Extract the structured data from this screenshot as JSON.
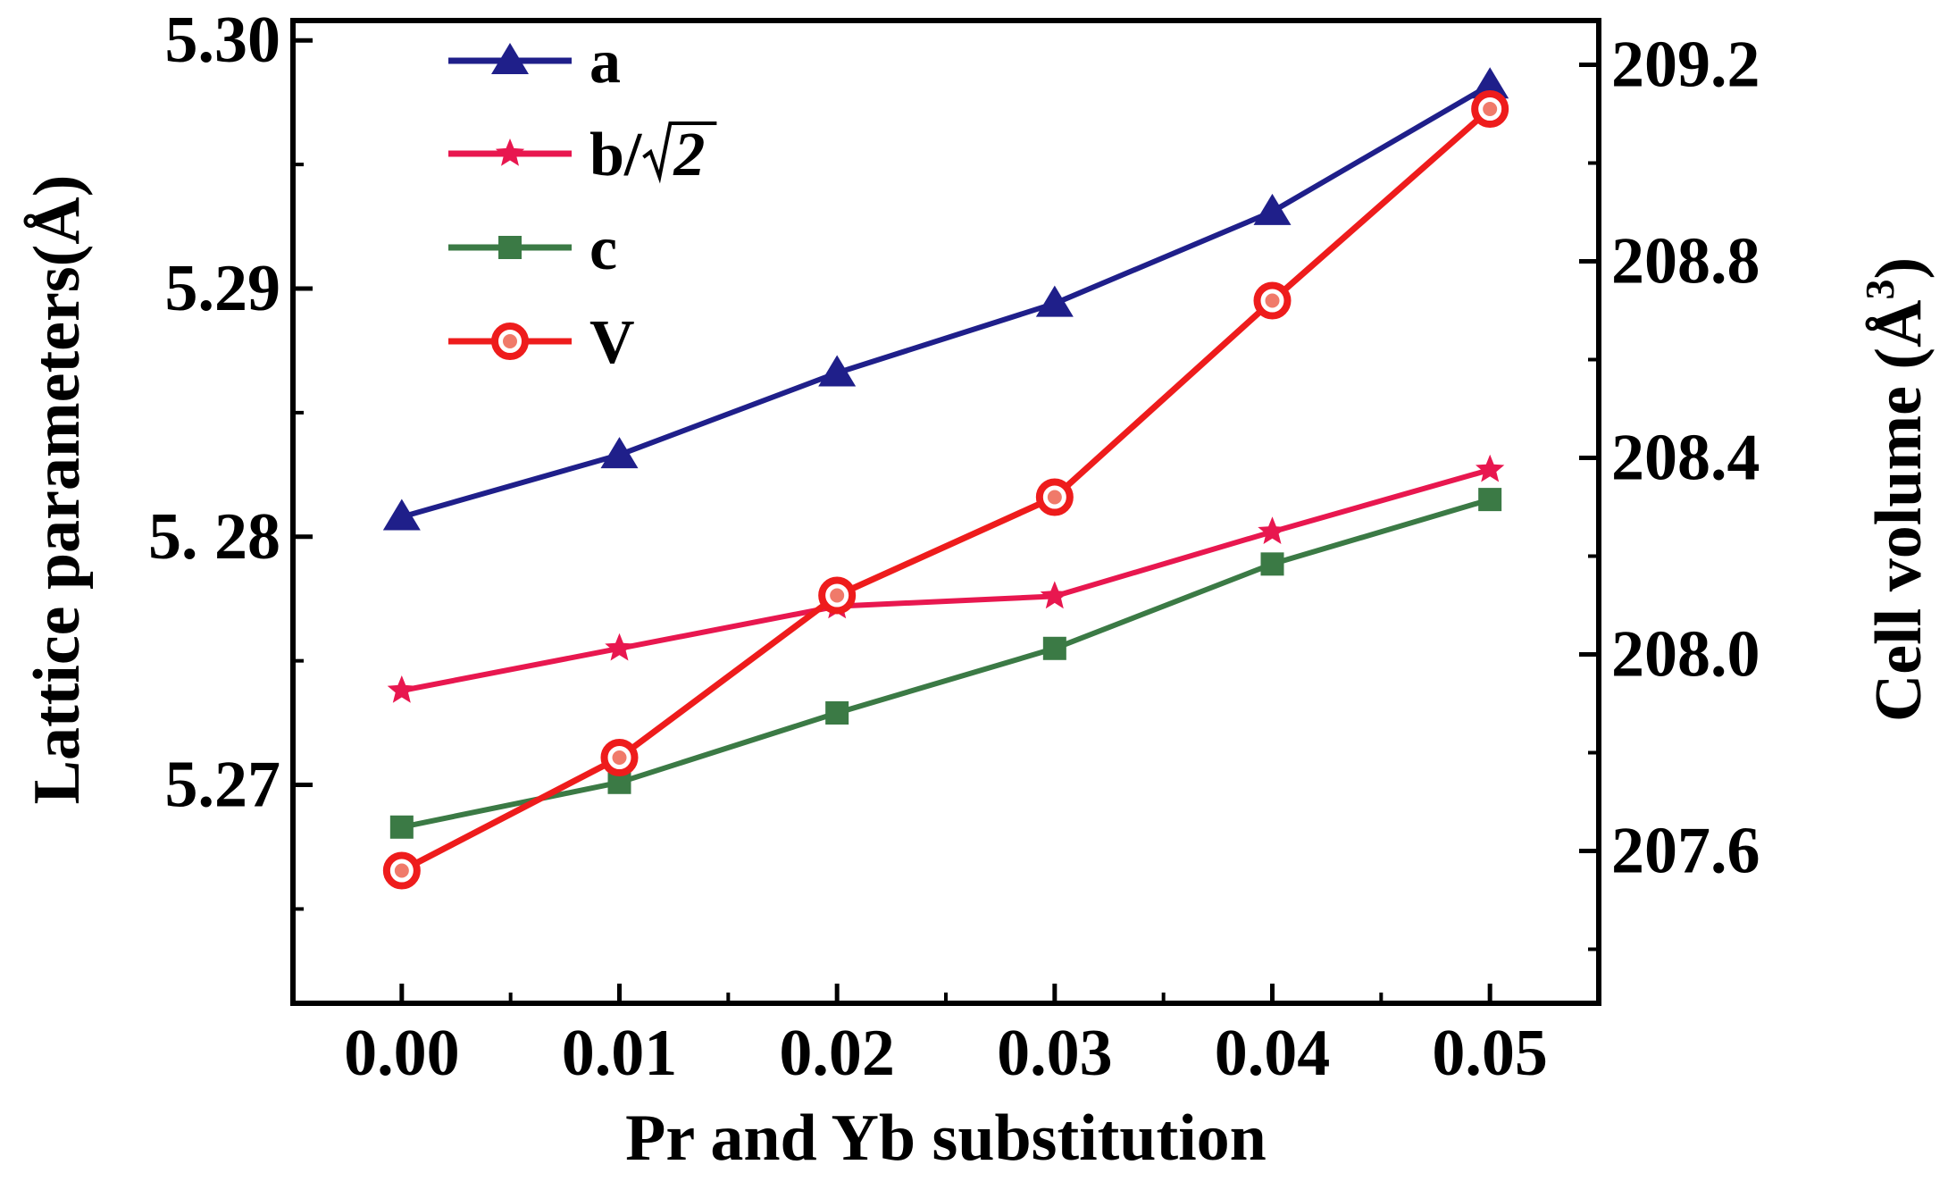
{
  "chart_data": {
    "type": "line",
    "title": "",
    "xlabel": "Pr and Yb substitution",
    "ylabel_left": {
      "text": "Lattice parameters(",
      "unit": "Å",
      "close": ")"
    },
    "ylabel_right": {
      "text": "Cell volume (",
      "unit": "Å",
      "sup": "3",
      "close": ")"
    },
    "x": [
      0.0,
      0.01,
      0.02,
      0.03,
      0.04,
      0.05
    ],
    "x_tick_labels": [
      "0.00",
      "0.01",
      "0.02",
      "0.03",
      "0.04",
      "0.05"
    ],
    "xlim": [
      -0.005,
      0.055
    ],
    "ylim_left": [
      5.2612,
      5.3008
    ],
    "y_ticks_left": [
      5.27,
      5.28,
      5.29,
      5.3
    ],
    "y_tick_labels_left": [
      "5.27",
      "5. 28",
      "5.29",
      "5.30"
    ],
    "ylim_right": [
      207.29,
      209.29
    ],
    "y_ticks_right": [
      207.6,
      208.0,
      208.4,
      208.8,
      209.2
    ],
    "y_tick_labels_right": [
      "207.6",
      "208.0",
      "208.4",
      "208.8",
      "209.2"
    ],
    "grid": false,
    "legend_position": "top-left",
    "series": [
      {
        "name": "a",
        "label_main": "a",
        "axis": "left",
        "marker": "triangle",
        "color": "#1f1f8a",
        "values": [
          5.2808,
          5.2833,
          5.2866,
          5.2894,
          5.2931,
          5.2982
        ]
      },
      {
        "name": "b/√2",
        "label_main": "b/",
        "label_sqrt": "2",
        "axis": "left",
        "marker": "star",
        "color": "#e8174f",
        "values": [
          5.2738,
          5.2755,
          5.2772,
          5.2776,
          5.2802,
          5.2827
        ]
      },
      {
        "name": "c",
        "label_main": "c",
        "axis": "left",
        "marker": "square",
        "color": "#3b7a45",
        "values": [
          5.2683,
          5.2701,
          5.2729,
          5.2755,
          5.2789,
          5.2815
        ]
      },
      {
        "name": "V",
        "label_main": "V",
        "axis": "right",
        "marker": "circle",
        "color": "#ee1c1c",
        "values": [
          207.56,
          207.79,
          208.12,
          208.32,
          208.72,
          209.11
        ]
      }
    ]
  }
}
